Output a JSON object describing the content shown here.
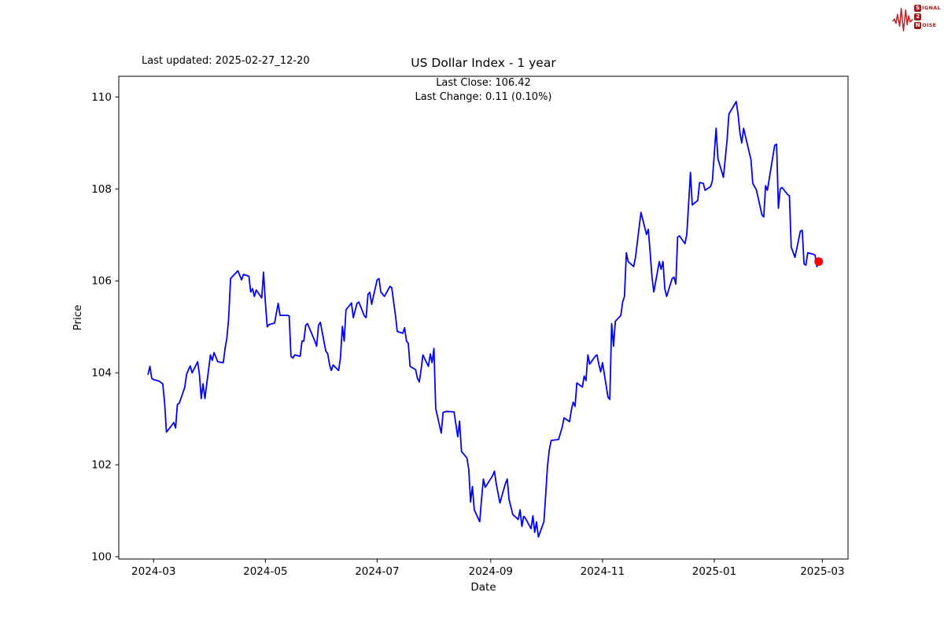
{
  "header": {
    "last_updated": "Last updated: 2025-02-27_12-20",
    "title": "US Dollar Index - 1 year"
  },
  "annotation": {
    "line1": "Last Close: 106.42",
    "line2": "Last Change: 0.11 (0.10%)"
  },
  "logo": {
    "signal_initial": "S",
    "signal_rest": "IGNAL",
    "middle": "2",
    "noise_initial": "N",
    "noise_rest": "OISE",
    "accent_color": "#c42127",
    "box_color": "#9b1b1f"
  },
  "chart_data": {
    "type": "line",
    "title": "US Dollar Index - 1 year",
    "xlabel": "Date",
    "ylabel": "Price",
    "grid": false,
    "legend": null,
    "last_close": "106.42",
    "last_change": "0.11 (0.10%)",
    "line_color": "#0000ff",
    "last_point_color": "#ff0000",
    "x_axis": {
      "range": [
        "2024-02-11",
        "2025-03-15"
      ],
      "ticks": [
        {
          "date": "2024-03-01",
          "label": "2024-03"
        },
        {
          "date": "2024-05-01",
          "label": "2024-05"
        },
        {
          "date": "2024-07-01",
          "label": "2024-07"
        },
        {
          "date": "2024-09-01",
          "label": "2024-09"
        },
        {
          "date": "2024-11-01",
          "label": "2024-11"
        },
        {
          "date": "2025-01-01",
          "label": "2025-01"
        },
        {
          "date": "2025-03-01",
          "label": "2025-03"
        }
      ]
    },
    "y_axis": {
      "range": [
        99.95,
        110.45
      ],
      "ticks": [
        100,
        102,
        104,
        106,
        108,
        110
      ]
    },
    "series": [
      {
        "name": "US Dollar Index",
        "color": "#0000ff",
        "points": [
          [
            "2024-02-27",
            103.97
          ],
          [
            "2024-02-28",
            104.14
          ],
          [
            "2024-02-29",
            103.88
          ],
          [
            "2024-03-01",
            103.85
          ],
          [
            "2024-03-04",
            103.82
          ],
          [
            "2024-03-06",
            103.76
          ],
          [
            "2024-03-07",
            103.36
          ],
          [
            "2024-03-08",
            102.71
          ],
          [
            "2024-03-11",
            102.86
          ],
          [
            "2024-03-12",
            102.92
          ],
          [
            "2024-03-13",
            102.8
          ],
          [
            "2024-03-14",
            103.31
          ],
          [
            "2024-03-15",
            103.34
          ],
          [
            "2024-03-18",
            103.68
          ],
          [
            "2024-03-19",
            103.97
          ],
          [
            "2024-03-21",
            104.15
          ],
          [
            "2024-03-22",
            104.0
          ],
          [
            "2024-03-25",
            104.24
          ],
          [
            "2024-03-26",
            103.97
          ],
          [
            "2024-03-27",
            103.44
          ],
          [
            "2024-03-28",
            103.76
          ],
          [
            "2024-03-29",
            103.44
          ],
          [
            "2024-04-01",
            104.39
          ],
          [
            "2024-04-02",
            104.27
          ],
          [
            "2024-04-03",
            104.44
          ],
          [
            "2024-04-05",
            104.24
          ],
          [
            "2024-04-08",
            104.22
          ],
          [
            "2024-04-09",
            104.53
          ],
          [
            "2024-04-10",
            104.75
          ],
          [
            "2024-04-11",
            105.2
          ],
          [
            "2024-04-12",
            106.05
          ],
          [
            "2024-04-16",
            106.22
          ],
          [
            "2024-04-18",
            106.02
          ],
          [
            "2024-04-19",
            106.14
          ],
          [
            "2024-04-22",
            106.1
          ],
          [
            "2024-04-23",
            105.76
          ],
          [
            "2024-04-24",
            105.83
          ],
          [
            "2024-04-25",
            105.66
          ],
          [
            "2024-04-26",
            105.8
          ],
          [
            "2024-04-29",
            105.63
          ],
          [
            "2024-04-30",
            106.19
          ],
          [
            "2024-05-01",
            105.54
          ],
          [
            "2024-05-02",
            105.0
          ],
          [
            "2024-05-03",
            105.05
          ],
          [
            "2024-05-06",
            105.08
          ],
          [
            "2024-05-08",
            105.51
          ],
          [
            "2024-05-09",
            105.25
          ],
          [
            "2024-05-13",
            105.25
          ],
          [
            "2024-05-14",
            105.24
          ],
          [
            "2024-05-15",
            104.36
          ],
          [
            "2024-05-16",
            104.32
          ],
          [
            "2024-05-17",
            104.39
          ],
          [
            "2024-05-20",
            104.36
          ],
          [
            "2024-05-21",
            104.69
          ],
          [
            "2024-05-22",
            104.69
          ],
          [
            "2024-05-23",
            105.03
          ],
          [
            "2024-05-24",
            105.07
          ],
          [
            "2024-05-28",
            104.69
          ],
          [
            "2024-05-29",
            104.58
          ],
          [
            "2024-05-30",
            105.03
          ],
          [
            "2024-05-31",
            105.1
          ],
          [
            "2024-06-03",
            104.47
          ],
          [
            "2024-06-04",
            104.42
          ],
          [
            "2024-06-05",
            104.18
          ],
          [
            "2024-06-06",
            104.05
          ],
          [
            "2024-06-07",
            104.17
          ],
          [
            "2024-06-10",
            104.05
          ],
          [
            "2024-06-11",
            104.33
          ],
          [
            "2024-06-12",
            105.01
          ],
          [
            "2024-06-13",
            104.69
          ],
          [
            "2024-06-14",
            105.37
          ],
          [
            "2024-06-17",
            105.52
          ],
          [
            "2024-06-18",
            105.2
          ],
          [
            "2024-06-20",
            105.51
          ],
          [
            "2024-06-21",
            105.54
          ],
          [
            "2024-06-24",
            105.24
          ],
          [
            "2024-06-25",
            105.2
          ],
          [
            "2024-06-26",
            105.71
          ],
          [
            "2024-06-27",
            105.75
          ],
          [
            "2024-06-28",
            105.49
          ],
          [
            "2024-07-01",
            106.02
          ],
          [
            "2024-07-02",
            106.05
          ],
          [
            "2024-07-03",
            105.76
          ],
          [
            "2024-07-05",
            105.66
          ],
          [
            "2024-07-08",
            105.88
          ],
          [
            "2024-07-09",
            105.85
          ],
          [
            "2024-07-10",
            105.54
          ],
          [
            "2024-07-11",
            105.25
          ],
          [
            "2024-07-12",
            104.9
          ],
          [
            "2024-07-15",
            104.86
          ],
          [
            "2024-07-16",
            104.98
          ],
          [
            "2024-07-17",
            104.69
          ],
          [
            "2024-07-18",
            104.64
          ],
          [
            "2024-07-19",
            104.14
          ],
          [
            "2024-07-22",
            104.07
          ],
          [
            "2024-07-23",
            103.88
          ],
          [
            "2024-07-24",
            103.8
          ],
          [
            "2024-07-25",
            104.07
          ],
          [
            "2024-07-26",
            104.39
          ],
          [
            "2024-07-29",
            104.14
          ],
          [
            "2024-07-30",
            104.41
          ],
          [
            "2024-07-31",
            104.22
          ],
          [
            "2024-08-01",
            104.53
          ],
          [
            "2024-08-02",
            103.22
          ],
          [
            "2024-08-05",
            102.69
          ],
          [
            "2024-08-06",
            103.14
          ],
          [
            "2024-08-08",
            103.16
          ],
          [
            "2024-08-12",
            103.15
          ],
          [
            "2024-08-14",
            102.61
          ],
          [
            "2024-08-15",
            102.95
          ],
          [
            "2024-08-16",
            102.29
          ],
          [
            "2024-08-19",
            102.15
          ],
          [
            "2024-08-20",
            101.9
          ],
          [
            "2024-08-21",
            101.19
          ],
          [
            "2024-08-22",
            101.53
          ],
          [
            "2024-08-23",
            101.02
          ],
          [
            "2024-08-26",
            100.76
          ],
          [
            "2024-08-27",
            101.27
          ],
          [
            "2024-08-28",
            101.69
          ],
          [
            "2024-08-29",
            101.51
          ],
          [
            "2024-09-02",
            101.76
          ],
          [
            "2024-09-03",
            101.86
          ],
          [
            "2024-09-04",
            101.59
          ],
          [
            "2024-09-06",
            101.17
          ],
          [
            "2024-09-09",
            101.59
          ],
          [
            "2024-09-10",
            101.69
          ],
          [
            "2024-09-11",
            101.25
          ],
          [
            "2024-09-13",
            100.92
          ],
          [
            "2024-09-16",
            100.81
          ],
          [
            "2024-09-17",
            101.02
          ],
          [
            "2024-09-18",
            100.66
          ],
          [
            "2024-09-19",
            100.88
          ],
          [
            "2024-09-20",
            100.83
          ],
          [
            "2024-09-23",
            100.61
          ],
          [
            "2024-09-24",
            100.89
          ],
          [
            "2024-09-25",
            100.53
          ],
          [
            "2024-09-26",
            100.76
          ],
          [
            "2024-09-27",
            100.43
          ],
          [
            "2024-09-30",
            100.76
          ],
          [
            "2024-10-01",
            101.35
          ],
          [
            "2024-10-02",
            101.98
          ],
          [
            "2024-10-03",
            102.33
          ],
          [
            "2024-10-04",
            102.53
          ],
          [
            "2024-10-08",
            102.55
          ],
          [
            "2024-10-10",
            102.82
          ],
          [
            "2024-10-11",
            103.02
          ],
          [
            "2024-10-14",
            102.94
          ],
          [
            "2024-10-15",
            103.19
          ],
          [
            "2024-10-16",
            103.36
          ],
          [
            "2024-10-17",
            103.27
          ],
          [
            "2024-10-18",
            103.78
          ],
          [
            "2024-10-21",
            103.69
          ],
          [
            "2024-10-22",
            103.93
          ],
          [
            "2024-10-23",
            103.83
          ],
          [
            "2024-10-24",
            104.39
          ],
          [
            "2024-10-25",
            104.19
          ],
          [
            "2024-10-28",
            104.36
          ],
          [
            "2024-10-29",
            104.39
          ],
          [
            "2024-10-30",
            104.19
          ],
          [
            "2024-10-31",
            104.02
          ],
          [
            "2024-11-01",
            104.22
          ],
          [
            "2024-11-04",
            103.47
          ],
          [
            "2024-11-05",
            103.42
          ],
          [
            "2024-11-06",
            105.07
          ],
          [
            "2024-11-07",
            104.58
          ],
          [
            "2024-11-08",
            105.12
          ],
          [
            "2024-11-11",
            105.25
          ],
          [
            "2024-11-12",
            105.54
          ],
          [
            "2024-11-13",
            105.66
          ],
          [
            "2024-11-14",
            106.61
          ],
          [
            "2024-11-15",
            106.42
          ],
          [
            "2024-11-18",
            106.31
          ],
          [
            "2024-11-19",
            106.51
          ],
          [
            "2024-11-22",
            107.49
          ],
          [
            "2024-11-25",
            107.01
          ],
          [
            "2024-11-26",
            107.12
          ],
          [
            "2024-11-27",
            106.61
          ],
          [
            "2024-11-28",
            106.08
          ],
          [
            "2024-11-29",
            105.76
          ],
          [
            "2024-12-02",
            106.42
          ],
          [
            "2024-12-03",
            106.25
          ],
          [
            "2024-12-04",
            106.42
          ],
          [
            "2024-12-05",
            105.83
          ],
          [
            "2024-12-06",
            105.66
          ],
          [
            "2024-12-09",
            106.05
          ],
          [
            "2024-12-10",
            106.08
          ],
          [
            "2024-12-11",
            105.93
          ],
          [
            "2024-12-12",
            106.95
          ],
          [
            "2024-12-13",
            106.98
          ],
          [
            "2024-12-16",
            106.81
          ],
          [
            "2024-12-17",
            107.0
          ],
          [
            "2024-12-19",
            108.36
          ],
          [
            "2024-12-20",
            107.65
          ],
          [
            "2024-12-23",
            107.75
          ],
          [
            "2024-12-24",
            108.14
          ],
          [
            "2024-12-26",
            108.12
          ],
          [
            "2024-12-27",
            107.97
          ],
          [
            "2024-12-30",
            108.05
          ],
          [
            "2024-12-31",
            108.18
          ],
          [
            "2025-01-02",
            109.32
          ],
          [
            "2025-01-03",
            108.66
          ],
          [
            "2025-01-06",
            108.25
          ],
          [
            "2025-01-08",
            109.07
          ],
          [
            "2025-01-09",
            109.63
          ],
          [
            "2025-01-13",
            109.9
          ],
          [
            "2025-01-14",
            109.61
          ],
          [
            "2025-01-15",
            109.22
          ],
          [
            "2025-01-16",
            109.0
          ],
          [
            "2025-01-17",
            109.32
          ],
          [
            "2025-01-20",
            108.81
          ],
          [
            "2025-01-21",
            108.64
          ],
          [
            "2025-01-22",
            108.12
          ],
          [
            "2025-01-24",
            107.98
          ],
          [
            "2025-01-27",
            107.44
          ],
          [
            "2025-01-28",
            107.39
          ],
          [
            "2025-01-29",
            108.07
          ],
          [
            "2025-01-30",
            107.97
          ],
          [
            "2025-02-03",
            108.95
          ],
          [
            "2025-02-04",
            108.97
          ],
          [
            "2025-02-05",
            107.58
          ],
          [
            "2025-02-06",
            108.0
          ],
          [
            "2025-02-07",
            108.03
          ],
          [
            "2025-02-10",
            107.88
          ],
          [
            "2025-02-11",
            107.85
          ],
          [
            "2025-02-12",
            106.73
          ],
          [
            "2025-02-13",
            106.63
          ],
          [
            "2025-02-14",
            106.51
          ],
          [
            "2025-02-17",
            107.08
          ],
          [
            "2025-02-18",
            107.1
          ],
          [
            "2025-02-19",
            106.37
          ],
          [
            "2025-02-20",
            106.34
          ],
          [
            "2025-02-21",
            106.61
          ],
          [
            "2025-02-24",
            106.58
          ],
          [
            "2025-02-25",
            106.56
          ],
          [
            "2025-02-26",
            106.31
          ],
          [
            "2025-02-27",
            106.42
          ]
        ]
      }
    ]
  }
}
